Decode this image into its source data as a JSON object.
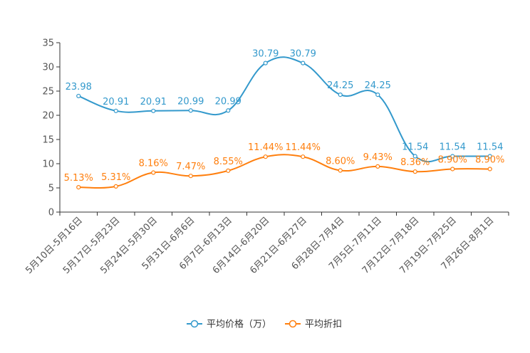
{
  "chart_data": {
    "type": "line",
    "title": "",
    "xlabel": "",
    "ylabel": "",
    "ylim": [
      0,
      35
    ],
    "yticks": [
      0,
      5,
      10,
      15,
      20,
      25,
      30,
      35
    ],
    "grid": false,
    "legend_position": "bottom-center",
    "categories": [
      "5月10日-5月16日",
      "5月17日-5月23日",
      "5月24日-5月30日",
      "5月31日-6月6日",
      "6月7日-6月13日",
      "6月14日-6月20日",
      "6月21日-6月27日",
      "6月28日-7月4日",
      "7月5日-7月11日",
      "7月12日-7月18日",
      "7月19日-7月25日",
      "7月26日-8月1日"
    ],
    "series": [
      {
        "name": "平均价格（万）",
        "color": "#3399cc",
        "values": [
          23.98,
          20.91,
          20.91,
          20.99,
          20.99,
          30.79,
          30.79,
          24.25,
          24.25,
          11.54,
          11.54,
          11.54
        ],
        "labels": [
          "23.98",
          "20.91",
          "20.91",
          "20.99",
          "20.99",
          "30.79",
          "30.79",
          "24.25",
          "24.25",
          "11.54",
          "11.54",
          "11.54"
        ]
      },
      {
        "name": "平均折扣",
        "color": "#ff7f0e",
        "values": [
          5.13,
          5.31,
          8.16,
          7.47,
          8.55,
          11.44,
          11.44,
          8.6,
          9.43,
          8.36,
          8.9,
          8.9
        ],
        "labels": [
          "5.13%",
          "5.31%",
          "8.16%",
          "7.47%",
          "8.55%",
          "11.44%",
          "11.44%",
          "8.60%",
          "9.43%",
          "8.36%",
          "8.90%",
          "8.90%"
        ]
      }
    ]
  }
}
